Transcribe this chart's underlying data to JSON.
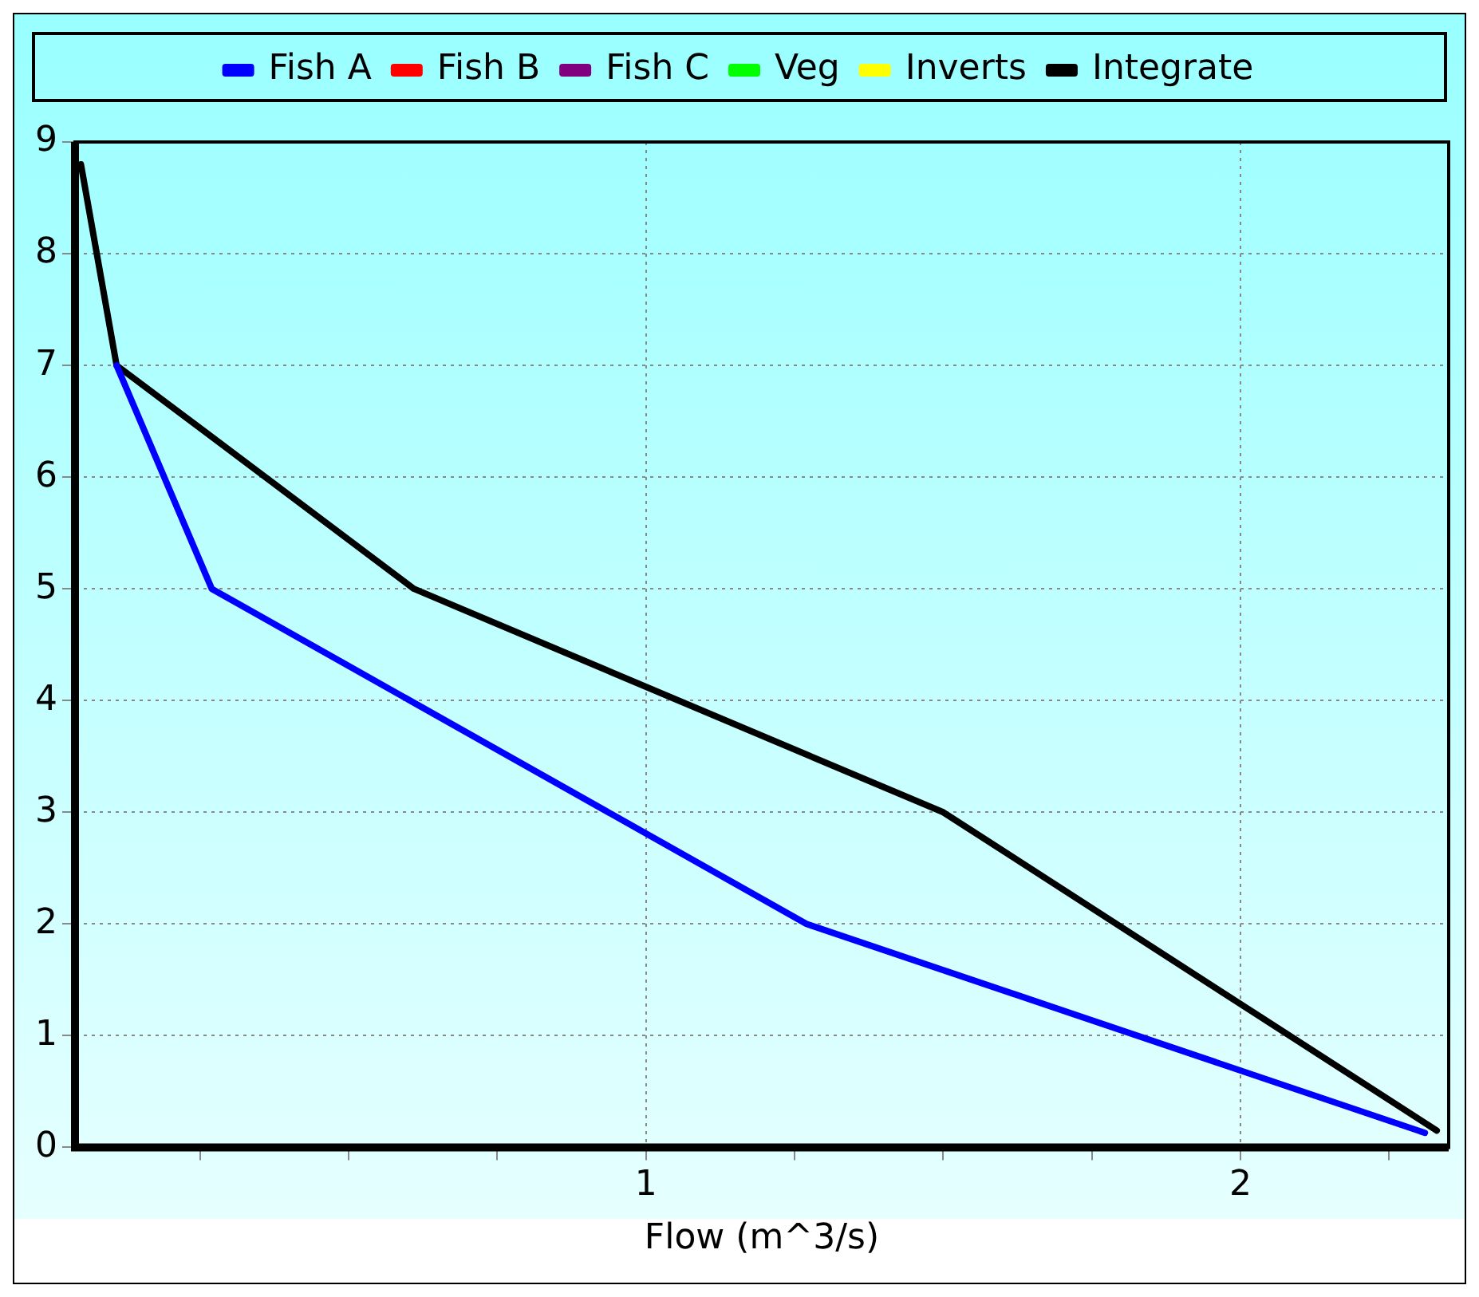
{
  "chart_data": {
    "type": "line",
    "xlabel": "Flow (m^3/s)",
    "xlim": [
      0.04,
      2.35
    ],
    "xticks": [
      {
        "value": 0.25,
        "label": null
      },
      {
        "value": 0.5,
        "label": null
      },
      {
        "value": 0.75,
        "label": null
      },
      1,
      {
        "value": 1.25,
        "label": null
      },
      {
        "value": 1.5,
        "label": null
      },
      {
        "value": 1.75,
        "label": null
      },
      2,
      {
        "value": 2.25,
        "label": null
      }
    ],
    "ylim": [
      0,
      9
    ],
    "yticks": [
      0,
      1,
      2,
      3,
      4,
      5,
      6,
      7,
      8,
      9
    ],
    "grid": true,
    "legend": "top",
    "marker": "none",
    "line_style": "solid",
    "series": [
      {
        "name": "Fish A",
        "color": "#0000ff",
        "x": [
          0.11,
          0.27,
          1.27,
          2.31
        ],
        "values": [
          7,
          5,
          2,
          0.13
        ]
      },
      {
        "name": "Fish B",
        "color": "#ff0000"
      },
      {
        "name": "Fish C",
        "color": "#800080"
      },
      {
        "name": "Veg",
        "color": "#00ff00"
      },
      {
        "name": "Inverts",
        "color": "#ffff00"
      },
      {
        "name": "Integrate",
        "color": "#000000",
        "x": [
          0.05,
          0.11,
          0.61,
          1.5,
          2.33
        ],
        "values": [
          8.8,
          7,
          5,
          3,
          0.15
        ]
      }
    ]
  }
}
